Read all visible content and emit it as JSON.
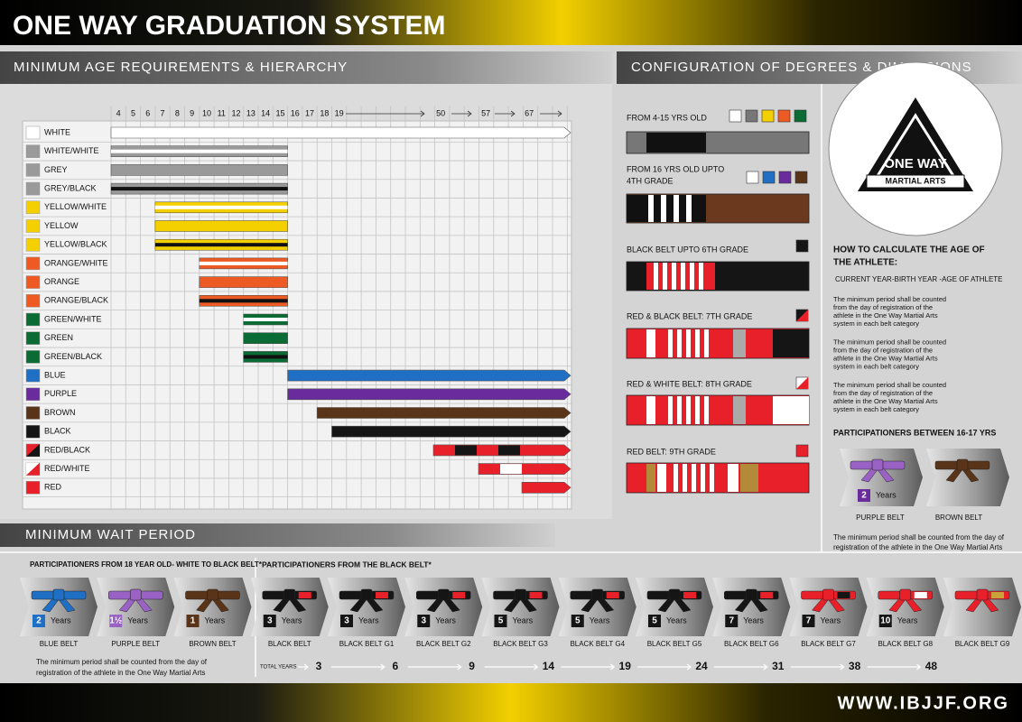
{
  "header": {
    "title": "ONE WAY GRADUATION SYSTEM",
    "website": "WWW.IBJJF.ORG"
  },
  "hierarchy": {
    "title": "MINIMUM AGE REQUIREMENTS & HIERARCHY",
    "ages": [
      4,
      5,
      6,
      7,
      8,
      9,
      10,
      11,
      12,
      13,
      14,
      15,
      16,
      17,
      18,
      19,
      50,
      57,
      67
    ],
    "belts": [
      {
        "label": "WHITE",
        "color": "#ffffff",
        "min_age": 4
      },
      {
        "label": "WHITE/WHITE",
        "color": "#9a9a9a",
        "stripe": "#ffffff",
        "min_age": 4,
        "max_age": 15
      },
      {
        "label": "GREY",
        "color": "#9a9a9a",
        "min_age": 4,
        "max_age": 15
      },
      {
        "label": "GREY/BLACK",
        "color": "#9a9a9a",
        "stripe": "#111111",
        "min_age": 4,
        "max_age": 15
      },
      {
        "label": "YELLOW/WHITE",
        "color": "#f5d000",
        "stripe": "#ffffff",
        "min_age": 7,
        "max_age": 15
      },
      {
        "label": "YELLOW",
        "color": "#f5d000",
        "min_age": 7,
        "max_age": 15
      },
      {
        "label": "YELLOW/BLACK",
        "color": "#f5d000",
        "stripe": "#111111",
        "min_age": 7,
        "max_age": 15
      },
      {
        "label": "ORANGE/WHITE",
        "color": "#ee5a24",
        "stripe": "#ffffff",
        "min_age": 10,
        "max_age": 15
      },
      {
        "label": "ORANGE",
        "color": "#ee5a24",
        "min_age": 10,
        "max_age": 15
      },
      {
        "label": "ORANGE/BLACK",
        "color": "#ee5a24",
        "stripe": "#111111",
        "min_age": 10,
        "max_age": 15
      },
      {
        "label": "GREEN/WHITE",
        "color": "#0b6b34",
        "stripe": "#ffffff",
        "min_age": 13,
        "max_age": 15
      },
      {
        "label": "GREEN",
        "color": "#0b6b34",
        "min_age": 13,
        "max_age": 15
      },
      {
        "label": "GREEN/BLACK",
        "color": "#0b6b34",
        "stripe": "#111111",
        "min_age": 13,
        "max_age": 15
      },
      {
        "label": "BLUE",
        "color": "#1f6fc4",
        "min_age": 16
      },
      {
        "label": "PURPLE",
        "color": "#6a2c9c",
        "min_age": 16
      },
      {
        "label": "BROWN",
        "color": "#5a3418",
        "min_age": 18
      },
      {
        "label": "BLACK",
        "color": "#151515",
        "min_age": 19
      },
      {
        "label": "RED/BLACK",
        "color": "#e8202a",
        "alt": "#151515",
        "min_age": 50
      },
      {
        "label": "RED/WHITE",
        "color": "#e8202a",
        "alt": "#ffffff",
        "min_age": 57
      },
      {
        "label": "RED",
        "color": "#e8202a",
        "min_age": 67
      }
    ]
  },
  "degrees": {
    "title": "CONFIGURATION OF DEGREES & DIMENSIONS",
    "items": [
      {
        "lines": [
          "FROM 4-15 YRS OLD"
        ]
      },
      {
        "lines": [
          "FROM 16 YRS OLD UPTO",
          "4TH GRADE"
        ]
      },
      {
        "lines": [
          "BLACK BELT UPTO 6TH GRADE"
        ]
      },
      {
        "lines": [
          "RED & BLACK BELT: 7TH GRADE"
        ]
      },
      {
        "lines": [
          "RED & WHITE BELT: 8TH GRADE"
        ]
      },
      {
        "lines": [
          "RED BELT: 9TH GRADE"
        ]
      }
    ]
  },
  "logo": {
    "line1": "ONE WAY",
    "line2": "MARTIAL ARTS"
  },
  "age_calc": {
    "title": [
      "HOW TO CALCULATE THE AGE OF",
      "THE ATHLETE:"
    ],
    "formula": "CURRENT YEAR-BIRTH YEAR -AGE OF ATHLETE",
    "notes": [
      [
        "The minimum period shall be counted",
        "from the day of registration of the",
        "athlete in the One Way Martial Arts",
        "system in each belt category"
      ],
      [
        "The minimum period shall be counted",
        "from the day of registration of the",
        "athlete in the One Way Martial Arts",
        "system in each belt category"
      ],
      [
        "The minimum period shall be counted",
        "from the day of registration of the",
        "athlete in the One Way Martial Arts",
        "system in each belt category"
      ]
    ]
  },
  "teens": {
    "title": "PARTICIPATIONERS BETWEEN 16-17 YRS",
    "years": "2",
    "years_label": "Years",
    "belts": [
      "PURPLE BELT",
      "BROWN BELT"
    ],
    "note": [
      "The minimum period shall be counted from the day of",
      "registration of the athlete in the One Way Martial Arts"
    ]
  },
  "wait": {
    "title": "MINIMUM WAIT PERIOD",
    "group1": "PARTICIPATIONERS FROM 18 YEAR OLD- WHITE TO BLACK BELT*",
    "group2": "PARTICIPATIONERS FROM THE BLACK BELT*",
    "years_label": "Years",
    "items": [
      {
        "label": "BLUE BELT",
        "years": "2",
        "color": "#1f6fc4"
      },
      {
        "label": "PURPLE BELT",
        "years": "1½",
        "color": "#9a62c4"
      },
      {
        "label": "BROWN BELT",
        "years": "1",
        "color": "#5a3418"
      },
      {
        "label": "BLACK BELT",
        "years": "3",
        "color": "#151515"
      },
      {
        "label": "BLACK BELT G1",
        "years": "3",
        "color": "#151515"
      },
      {
        "label": "BLACK BELT G2",
        "years": "3",
        "color": "#151515"
      },
      {
        "label": "BLACK BELT G3",
        "years": "5",
        "color": "#151515"
      },
      {
        "label": "BLACK BELT G4",
        "years": "5",
        "color": "#151515"
      },
      {
        "label": "BLACK BELT G5",
        "years": "5",
        "color": "#151515"
      },
      {
        "label": "BLACK BELT G6",
        "years": "7",
        "color": "#151515"
      },
      {
        "label": "BLACK BELT G7",
        "years": "7",
        "color": "#e8202a"
      },
      {
        "label": "BLACK BELT G8",
        "years": "10",
        "color": "#e8202a"
      },
      {
        "label": "BLACK BELT G9",
        "color": "#e8202a"
      }
    ],
    "note": [
      "The minimum period shall be counted from the day of",
      "registration of the athlete in the One Way Martial Arts"
    ],
    "total_label": "TOTAL YEARS",
    "totals": [
      3,
      6,
      9,
      14,
      19,
      24,
      31,
      38,
      48
    ]
  }
}
